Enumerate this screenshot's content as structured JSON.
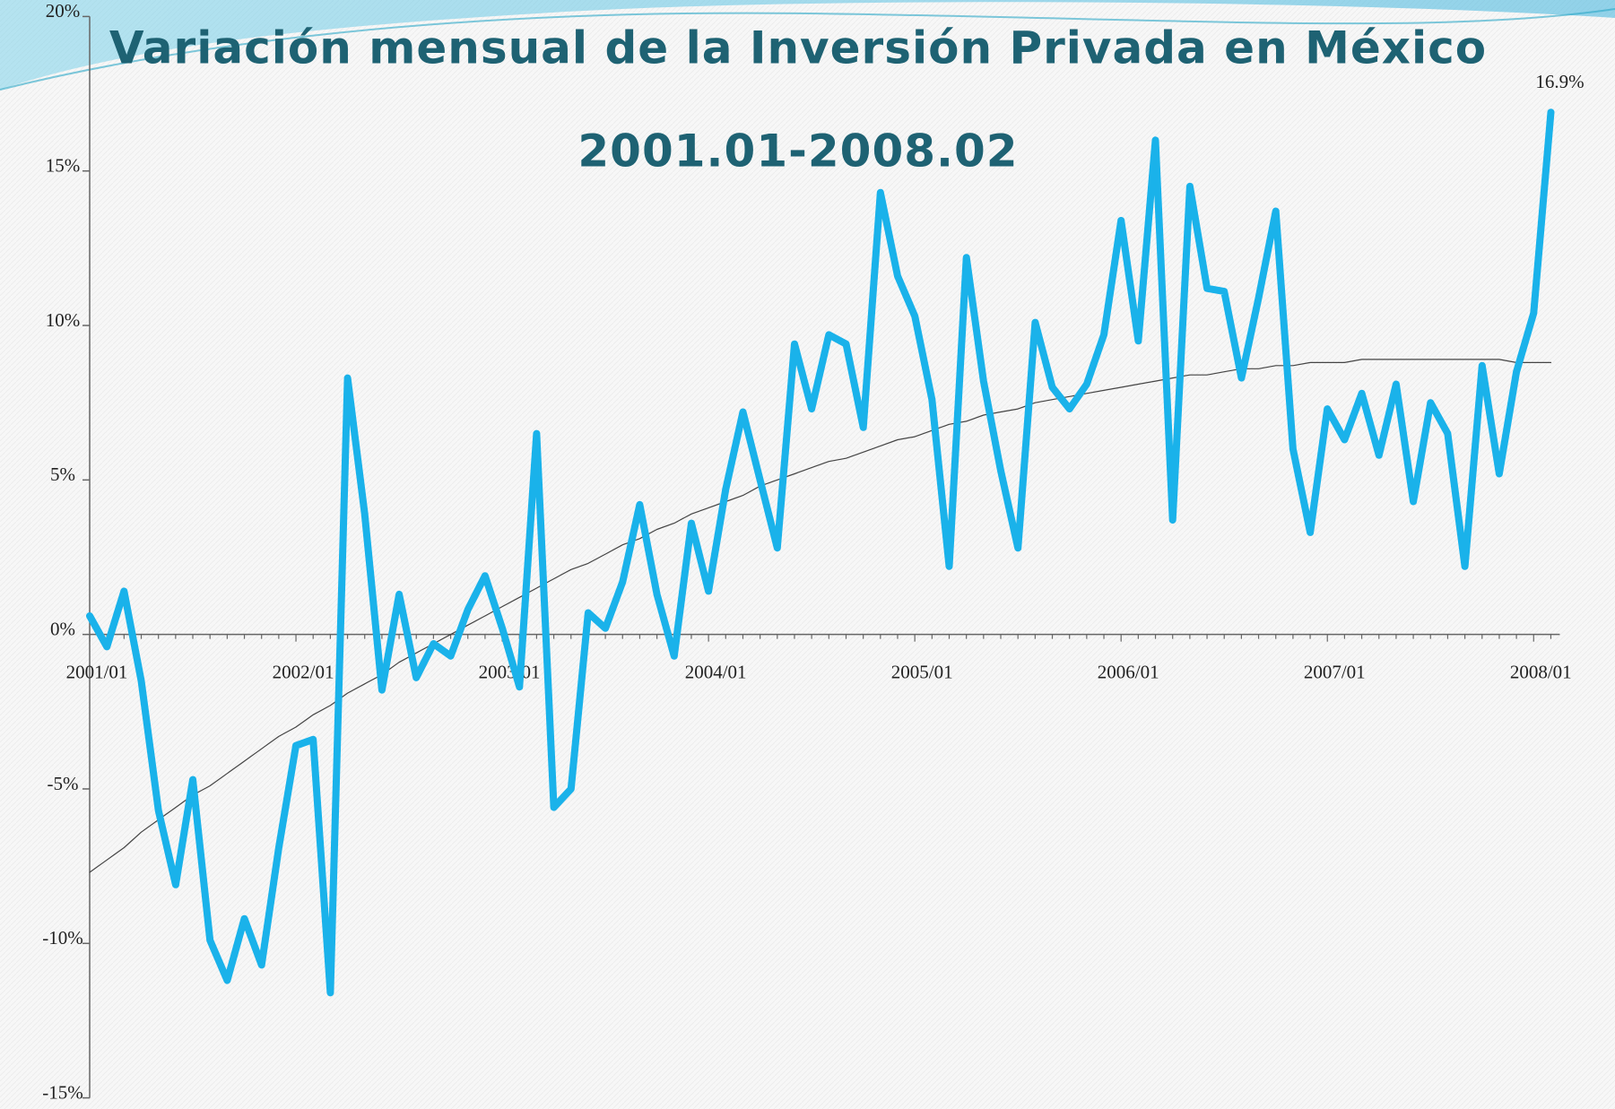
{
  "chart_data": {
    "type": "line",
    "title": "Variación mensual de la Inversión Privada en México",
    "subtitle": "2001.01-2008.02",
    "categories": [
      "2001/01",
      null,
      null,
      null,
      null,
      null,
      null,
      null,
      null,
      null,
      null,
      null,
      "2002/01",
      null,
      null,
      null,
      null,
      null,
      null,
      null,
      null,
      null,
      null,
      null,
      "2003/01",
      null,
      null,
      null,
      null,
      null,
      null,
      null,
      null,
      null,
      null,
      null,
      "2004/01",
      null,
      null,
      null,
      null,
      null,
      null,
      null,
      null,
      null,
      null,
      null,
      "2005/01",
      null,
      null,
      null,
      null,
      null,
      null,
      null,
      null,
      null,
      null,
      null,
      "2006/01",
      null,
      null,
      null,
      null,
      null,
      null,
      null,
      null,
      null,
      null,
      null,
      "2007/01",
      null,
      null,
      null,
      null,
      null,
      null,
      null,
      null,
      null,
      null,
      null,
      "2008/01",
      null
    ],
    "series": [
      {
        "color": "#1ab2ea",
        "width": 8,
        "values": [
          0.6,
          -0.4,
          1.4,
          -1.5,
          -5.7,
          -8.1,
          -4.7,
          -9.9,
          -11.2,
          -9.2,
          -10.7,
          -6.9,
          -3.6,
          -3.4,
          -11.6,
          8.3,
          3.9,
          -1.8,
          1.3,
          -1.4,
          -0.3,
          -0.7,
          0.8,
          1.9,
          0.2,
          -1.7,
          6.5,
          -5.6,
          -5.0,
          0.7,
          0.2,
          1.7,
          4.2,
          1.3,
          -0.7,
          3.6,
          1.4,
          4.7,
          7.2,
          5.0,
          2.8,
          9.4,
          7.3,
          9.7,
          9.4,
          6.7,
          14.3,
          11.6,
          10.3,
          7.6,
          2.2,
          12.2,
          8.2,
          5.3,
          2.8,
          10.1,
          8.0,
          7.3,
          8.1,
          9.7,
          13.4,
          9.5,
          16.0,
          3.7,
          14.5,
          11.2,
          11.1,
          8.3,
          10.9,
          13.7,
          6.0,
          3.3,
          7.3,
          6.3,
          7.8,
          5.8,
          8.1,
          4.3,
          7.5,
          6.5,
          2.2,
          8.7,
          5.2,
          8.5,
          10.4,
          16.9
        ],
        "value_labels": [
          null,
          null,
          null,
          null,
          null,
          null,
          null,
          null,
          null,
          null,
          null,
          null,
          null,
          null,
          null,
          null,
          null,
          null,
          null,
          null,
          null,
          null,
          null,
          null,
          null,
          null,
          null,
          null,
          null,
          null,
          null,
          null,
          null,
          null,
          null,
          null,
          null,
          null,
          null,
          null,
          null,
          null,
          null,
          null,
          null,
          null,
          null,
          null,
          null,
          null,
          null,
          null,
          null,
          null,
          null,
          null,
          null,
          null,
          null,
          null,
          null,
          null,
          null,
          null,
          null,
          null,
          null,
          null,
          null,
          null,
          null,
          null,
          null,
          null,
          null,
          null,
          null,
          null,
          null,
          null,
          null,
          null,
          null,
          null,
          null,
          "16.9%"
        ]
      },
      {
        "color": "#444444",
        "width": 1.2,
        "values": [
          -7.7,
          -7.3,
          -6.9,
          -6.4,
          -6.0,
          -5.6,
          -5.2,
          -4.9,
          -4.5,
          -4.1,
          -3.7,
          -3.3,
          -3.0,
          -2.6,
          -2.3,
          -1.9,
          -1.6,
          -1.3,
          -0.9,
          -0.6,
          -0.3,
          0.0,
          0.3,
          0.6,
          0.9,
          1.2,
          1.5,
          1.8,
          2.1,
          2.3,
          2.6,
          2.9,
          3.1,
          3.4,
          3.6,
          3.9,
          4.1,
          4.3,
          4.5,
          4.8,
          5.0,
          5.2,
          5.4,
          5.6,
          5.7,
          5.9,
          6.1,
          6.3,
          6.4,
          6.6,
          6.8,
          6.9,
          7.1,
          7.2,
          7.3,
          7.5,
          7.6,
          7.7,
          7.8,
          7.9,
          8.0,
          8.1,
          8.2,
          8.3,
          8.4,
          8.4,
          8.5,
          8.6,
          8.6,
          8.7,
          8.7,
          8.8,
          8.8,
          8.8,
          8.9,
          8.9,
          8.9,
          8.9,
          8.9,
          8.9,
          8.9,
          8.9,
          8.9,
          8.8,
          8.8,
          8.8
        ]
      }
    ],
    "ylim": [
      -15,
      20
    ],
    "yticks": [
      {
        "value": -15,
        "label": "-15%"
      },
      {
        "value": -10,
        "label": "-10%"
      },
      {
        "value": -5,
        "label": "-5%"
      },
      {
        "value": 0,
        "label": "0%"
      },
      {
        "value": 5,
        "label": "5%"
      },
      {
        "value": 10,
        "label": "10%"
      },
      {
        "value": 15,
        "label": "15%"
      },
      {
        "value": 20,
        "label": "20%"
      }
    ]
  }
}
